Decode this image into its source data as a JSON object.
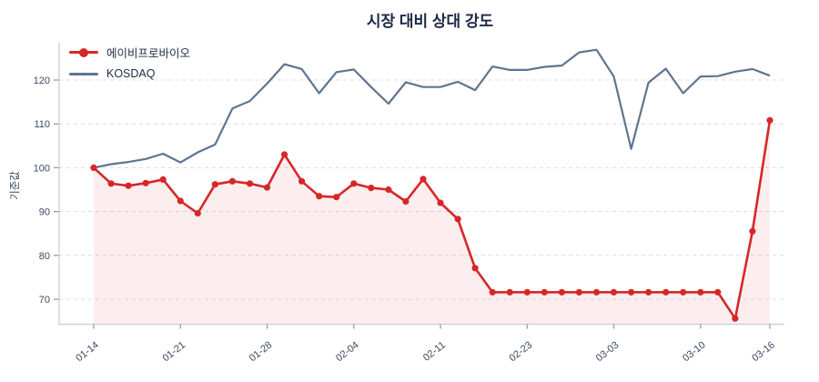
{
  "title": "시장 대비 상대 강도",
  "colors": {
    "series_red": "#d62728",
    "series_gray": "#5e7590",
    "fill_pink": "rgba(214,39,40,0.08)",
    "grid": "#dcdcdc",
    "tick_text": "#3b4a63",
    "title_text": "#1c2844",
    "background": "#ffffff"
  },
  "chart_data": {
    "type": "line",
    "title": "시장 대비 상대 강도",
    "xlabel": "",
    "ylabel": "기준값",
    "ylim": [
      64,
      128.5
    ],
    "yticks": [
      70,
      80,
      90,
      100,
      110,
      120
    ],
    "grid": "horizontal-dashed",
    "legend_position": "top-left-inside",
    "n_points": 40,
    "x_tick_indices": [
      0,
      5,
      10,
      15,
      20,
      25,
      30,
      35,
      39
    ],
    "x_tick_labels": [
      "01-14",
      "01-21",
      "01-28",
      "02-04",
      "02-11",
      "02-23",
      "03-03",
      "03-10",
      "03-16"
    ],
    "series": [
      {
        "name": "에이비프로바이오",
        "color": "#d62728",
        "marker": "circle",
        "area_fill": true,
        "values": [
          100,
          96.4,
          95.9,
          96.5,
          97.3,
          92.4,
          89.6,
          96.2,
          96.9,
          96.4,
          95.5,
          103,
          96.9,
          93.5,
          93.3,
          96.4,
          95.4,
          95,
          92.3,
          97.4,
          92,
          88.3,
          77.1,
          71.6,
          71.6,
          71.6,
          71.6,
          71.6,
          71.6,
          71.6,
          71.6,
          71.6,
          71.6,
          71.6,
          71.6,
          71.6,
          71.6,
          65.6,
          85.5,
          110.8
        ]
      },
      {
        "name": "KOSDAQ",
        "color": "#5e7590",
        "marker": "none",
        "area_fill": false,
        "values": [
          100,
          100.8,
          101.3,
          102,
          103.2,
          101.2,
          103.5,
          105.3,
          113.5,
          115.2,
          119.2,
          123.6,
          122.5,
          117,
          121.8,
          122.4,
          118.4,
          114.6,
          119.5,
          118.4,
          118.4,
          119.6,
          117.7,
          123.1,
          122.3,
          122.3,
          123,
          123.3,
          126.3,
          126.9,
          120.8,
          104.3,
          119.4,
          122.6,
          117,
          120.8,
          120.9,
          121.9,
          122.5,
          121
        ]
      }
    ]
  }
}
